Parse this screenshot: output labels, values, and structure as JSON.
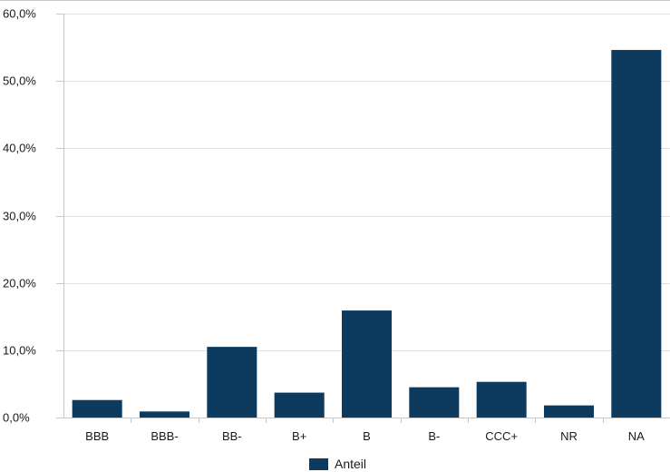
{
  "colors": {
    "bar": "#0d3a5f",
    "grid": "#e0e0e0",
    "axis": "#c8c8c8"
  },
  "chart_data": {
    "type": "bar",
    "categories": [
      "BBB",
      "BBB-",
      "BB-",
      "B+",
      "B",
      "B-",
      "CCC+",
      "NR",
      "NA"
    ],
    "series": [
      {
        "name": "Anteil",
        "values": [
          2.6,
          0.9,
          10.5,
          3.7,
          15.9,
          4.5,
          5.3,
          1.8,
          54.6
        ]
      }
    ],
    "y_ticks": [
      "0,0%",
      "10,0%",
      "20,0%",
      "30,0%",
      "40,0%",
      "50,0%",
      "60,0%"
    ],
    "ylim": [
      0,
      60
    ],
    "grid": true,
    "legend_position": "bottom-center"
  }
}
